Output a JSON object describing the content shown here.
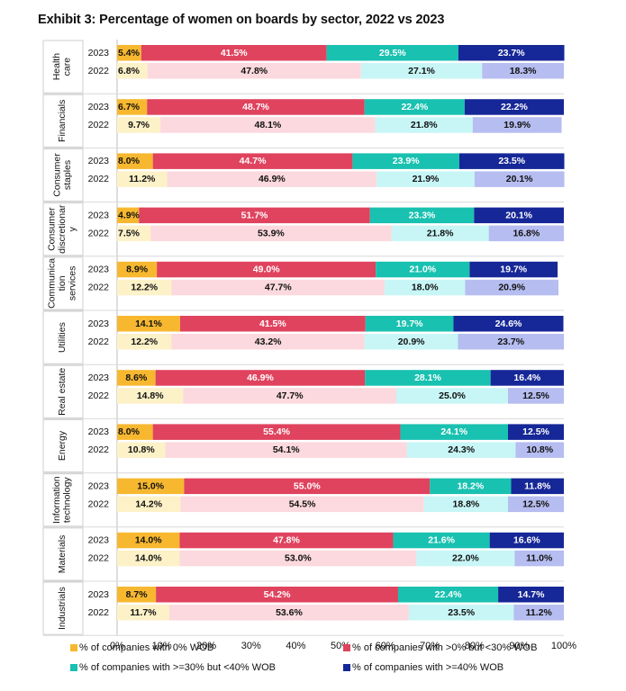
{
  "title": "Exhibit 3: Percentage of women on boards by sector, 2022 vs 2023",
  "chart_data": {
    "type": "bar",
    "orientation": "horizontal",
    "stacked": "percent",
    "title": "Exhibit 3: Percentage of women on boards by sector, 2022 vs 2023",
    "x_ticks": [
      "0%",
      "10%",
      "20%",
      "30%",
      "40%",
      "50%",
      "60%",
      "70%",
      "80%",
      "90%",
      "100%"
    ],
    "xlim": [
      0,
      100
    ],
    "legend_position": "bottom",
    "series": [
      {
        "name": "% of companies with 0% WOB",
        "color_2023": "#f7b830",
        "color_2022": "#fdf1c8"
      },
      {
        "name": "% of companies with >0% but <30% WOB",
        "color_2023": "#e0435e",
        "color_2022": "#fbd9de"
      },
      {
        "name": "% of companies with >=30% but <40% WOB",
        "color_2023": "#19c1b0",
        "color_2022": "#c8f6f6"
      },
      {
        "name": "% of companies with >=40% WOB",
        "color_2023": "#162797",
        "color_2022": "#b6bdf0"
      }
    ],
    "sectors": [
      {
        "label_lines": [
          "Health",
          "care"
        ],
        "rows": [
          {
            "year": "2023",
            "values": [
              5.4,
              41.5,
              29.5,
              23.7
            ],
            "labels": [
              "5.4%",
              "41.5%",
              "29.5%",
              "23.7%"
            ]
          },
          {
            "year": "2022",
            "values": [
              6.8,
              47.8,
              27.1,
              18.3
            ],
            "labels": [
              "6.8%",
              "47.8%",
              "27.1%",
              "18.3%"
            ]
          }
        ]
      },
      {
        "label_lines": [
          "Financials"
        ],
        "rows": [
          {
            "year": "2023",
            "values": [
              6.7,
              48.7,
              22.4,
              22.2
            ],
            "labels": [
              "6.7%",
              "48.7%",
              "22.4%",
              "22.2%"
            ]
          },
          {
            "year": "2022",
            "values": [
              9.7,
              48.1,
              21.8,
              19.9
            ],
            "labels": [
              "9.7%",
              "48.1%",
              "21.8%",
              "19.9%"
            ]
          }
        ]
      },
      {
        "label_lines": [
          "Consumer",
          "staples"
        ],
        "rows": [
          {
            "year": "2023",
            "values": [
              8.0,
              44.7,
              23.9,
              23.5
            ],
            "labels": [
              "8.0%",
              "44.7%",
              "23.9%",
              "23.5%"
            ]
          },
          {
            "year": "2022",
            "values": [
              11.2,
              46.9,
              21.9,
              20.1
            ],
            "labels": [
              "11.2%",
              "46.9%",
              "21.9%",
              "20.1%"
            ]
          }
        ]
      },
      {
        "label_lines": [
          "Consumer",
          "discretionar",
          "y"
        ],
        "rows": [
          {
            "year": "2023",
            "values": [
              4.9,
              51.7,
              23.3,
              20.1
            ],
            "labels": [
              "4.9%",
              "51.7%",
              "23.3%",
              "20.1%"
            ]
          },
          {
            "year": "2022",
            "values": [
              7.5,
              53.9,
              21.8,
              16.8
            ],
            "labels": [
              "7.5%",
              "53.9%",
              "21.8%",
              "16.8%"
            ]
          }
        ]
      },
      {
        "label_lines": [
          "Communica",
          "tion",
          "services"
        ],
        "rows": [
          {
            "year": "2023",
            "values": [
              8.9,
              49.0,
              21.0,
              19.7
            ],
            "labels": [
              "8.9%",
              "49.0%",
              "21.0%",
              "19.7%"
            ]
          },
          {
            "year": "2022",
            "values": [
              12.2,
              47.7,
              18.0,
              20.9
            ],
            "labels": [
              "12.2%",
              "47.7%",
              "18.0%",
              "20.9%"
            ]
          }
        ]
      },
      {
        "label_lines": [
          "Utilities"
        ],
        "rows": [
          {
            "year": "2023",
            "values": [
              14.1,
              41.5,
              19.7,
              24.6
            ],
            "labels": [
              "14.1%",
              "41.5%",
              "19.7%",
              "24.6%"
            ]
          },
          {
            "year": "2022",
            "values": [
              12.2,
              43.2,
              20.9,
              23.7
            ],
            "labels": [
              "12.2%",
              "43.2%",
              "20.9%",
              "23.7%"
            ]
          }
        ]
      },
      {
        "label_lines": [
          "Real estate"
        ],
        "rows": [
          {
            "year": "2023",
            "values": [
              8.6,
              46.9,
              28.1,
              16.4
            ],
            "labels": [
              "8.6%",
              "46.9%",
              "28.1%",
              "16.4%"
            ]
          },
          {
            "year": "2022",
            "values": [
              14.8,
              47.7,
              25.0,
              12.5
            ],
            "labels": [
              "14.8%",
              "47.7%",
              "25.0%",
              "12.5%"
            ]
          }
        ]
      },
      {
        "label_lines": [
          "Energy"
        ],
        "rows": [
          {
            "year": "2023",
            "values": [
              8.0,
              55.4,
              24.1,
              12.5
            ],
            "labels": [
              "8.0%",
              "55.4%",
              "24.1%",
              "12.5%"
            ]
          },
          {
            "year": "2022",
            "values": [
              10.8,
              54.1,
              24.3,
              10.8
            ],
            "labels": [
              "10.8%",
              "54.1%",
              "24.3%",
              "10.8%"
            ]
          }
        ]
      },
      {
        "label_lines": [
          "Information",
          "technology"
        ],
        "rows": [
          {
            "year": "2023",
            "values": [
              15.0,
              55.0,
              18.2,
              11.8
            ],
            "labels": [
              "15.0%",
              "55.0%",
              "18.2%",
              "11.8%"
            ]
          },
          {
            "year": "2022",
            "values": [
              14.2,
              54.5,
              18.8,
              12.5
            ],
            "labels": [
              "14.2%",
              "54.5%",
              "18.8%",
              "12.5%"
            ]
          }
        ]
      },
      {
        "label_lines": [
          "Materials"
        ],
        "rows": [
          {
            "year": "2023",
            "values": [
              14.0,
              47.8,
              21.6,
              16.6
            ],
            "labels": [
              "14.0%",
              "47.8%",
              "21.6%",
              "16.6%"
            ]
          },
          {
            "year": "2022",
            "values": [
              14.0,
              53.0,
              22.0,
              11.0
            ],
            "labels": [
              "14.0%",
              "53.0%",
              "22.0%",
              "11.0%"
            ]
          }
        ]
      },
      {
        "label_lines": [
          "Industrials"
        ],
        "rows": [
          {
            "year": "2023",
            "values": [
              8.7,
              54.2,
              22.4,
              14.7
            ],
            "labels": [
              "8.7%",
              "54.2%",
              "22.4%",
              "14.7%"
            ]
          },
          {
            "year": "2022",
            "values": [
              11.7,
              53.6,
              23.5,
              11.2
            ],
            "labels": [
              "11.7%",
              "53.6%",
              "23.5%",
              "11.2%"
            ]
          }
        ]
      }
    ]
  }
}
